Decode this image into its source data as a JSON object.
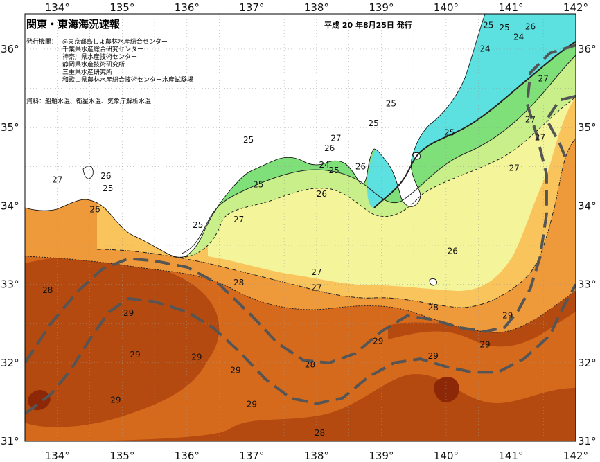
{
  "header": {
    "title": "関東・東海海況速報",
    "issue_date": "平成 20 年8月25日 発行"
  },
  "issuers": {
    "label": "発行機関：",
    "organizations": [
      "◎東京都島しょ農林水産総合センター",
      "千葉県水産総合研究センター",
      "神奈川県水産技術センター",
      "静岡県水産技術研究所",
      "三重県水産研究所",
      "和歌山県農林水産総合技術センター水産試験場"
    ]
  },
  "source": "資料：船舶水温、衛星水温、気象庁解析水温",
  "axes": {
    "lon_ticks": [
      "134°",
      "135°",
      "136°",
      "137°",
      "138°",
      "139°",
      "140°",
      "141°",
      "142°"
    ],
    "lat_ticks_left": [
      "36°",
      "35°",
      "34°",
      "33°",
      "32°",
      "31°"
    ],
    "lat_ticks_right": [
      "36°",
      "35°",
      "34°",
      "33°",
      "32°",
      "31°"
    ]
  },
  "colors": {
    "c24": "#5ce0e0",
    "c25": "#7fe07a",
    "c26": "#c8ef8a",
    "c26b": "#f4f49a",
    "c27": "#f9c45c",
    "c28": "#ee9a3a",
    "c29": "#d66a1c",
    "c30": "#b44a10",
    "c31": "#8c2808",
    "land": "#ffffff",
    "kuroshio": "#555555"
  },
  "contour_labels": [
    {
      "t": "25",
      "lon": 140.65,
      "lat": 36.3
    },
    {
      "t": "25",
      "lon": 140.9,
      "lat": 36.27
    },
    {
      "t": "26",
      "lon": 141.3,
      "lat": 36.28
    },
    {
      "t": "24",
      "lon": 141.12,
      "lat": 36.15
    },
    {
      "t": "24",
      "lon": 140.6,
      "lat": 36.0
    },
    {
      "t": "27",
      "lon": 141.5,
      "lat": 35.62
    },
    {
      "t": "27",
      "lon": 141.3,
      "lat": 35.1
    },
    {
      "t": "27",
      "lon": 141.45,
      "lat": 34.87
    },
    {
      "t": "27",
      "lon": 141.05,
      "lat": 34.48
    },
    {
      "t": "25",
      "lon": 139.15,
      "lat": 35.3
    },
    {
      "t": "25",
      "lon": 138.88,
      "lat": 35.05
    },
    {
      "t": "25",
      "lon": 140.05,
      "lat": 34.93
    },
    {
      "t": "25",
      "lon": 136.95,
      "lat": 34.84
    },
    {
      "t": "27",
      "lon": 138.3,
      "lat": 34.86
    },
    {
      "t": "26",
      "lon": 138.2,
      "lat": 34.73
    },
    {
      "t": "24",
      "lon": 138.12,
      "lat": 34.52
    },
    {
      "t": "25",
      "lon": 138.27,
      "lat": 34.45
    },
    {
      "t": "26",
      "lon": 138.68,
      "lat": 34.5
    },
    {
      "t": "25",
      "lon": 137.1,
      "lat": 34.27
    },
    {
      "t": "26",
      "lon": 138.08,
      "lat": 34.15
    },
    {
      "t": "27",
      "lon": 134.0,
      "lat": 34.33
    },
    {
      "t": "26",
      "lon": 134.75,
      "lat": 34.38
    },
    {
      "t": "25",
      "lon": 134.78,
      "lat": 34.22
    },
    {
      "t": "26",
      "lon": 134.58,
      "lat": 33.95
    },
    {
      "t": "27",
      "lon": 136.8,
      "lat": 33.82
    },
    {
      "t": "25",
      "lon": 136.17,
      "lat": 33.75
    },
    {
      "t": "26",
      "lon": 140.1,
      "lat": 33.42
    },
    {
      "t": "27",
      "lon": 138.0,
      "lat": 33.15
    },
    {
      "t": "27",
      "lon": 138.0,
      "lat": 32.95
    },
    {
      "t": "28",
      "lon": 136.8,
      "lat": 33.02
    },
    {
      "t": "28",
      "lon": 133.85,
      "lat": 32.92
    },
    {
      "t": "28",
      "lon": 139.8,
      "lat": 32.7
    },
    {
      "t": "29",
      "lon": 135.1,
      "lat": 32.63
    },
    {
      "t": "29",
      "lon": 140.95,
      "lat": 32.6
    },
    {
      "t": "29",
      "lon": 138.95,
      "lat": 32.27
    },
    {
      "t": "29",
      "lon": 140.6,
      "lat": 32.23
    },
    {
      "t": "29",
      "lon": 135.2,
      "lat": 32.1
    },
    {
      "t": "29",
      "lon": 136.15,
      "lat": 32.07
    },
    {
      "t": "29",
      "lon": 139.8,
      "lat": 32.08
    },
    {
      "t": "28",
      "lon": 137.9,
      "lat": 31.97
    },
    {
      "t": "29",
      "lon": 136.75,
      "lat": 31.9
    },
    {
      "t": "29",
      "lon": 134.9,
      "lat": 31.52
    },
    {
      "t": "29",
      "lon": 137.0,
      "lat": 31.47
    },
    {
      "t": "28",
      "lon": 138.05,
      "lat": 31.1
    }
  ],
  "kuroshio_axes": [
    [
      [
        133.5,
        32.0
      ],
      [
        133.9,
        32.5
      ],
      [
        134.3,
        32.9
      ],
      [
        134.7,
        33.2
      ],
      [
        135.1,
        33.33
      ],
      [
        135.5,
        33.3
      ],
      [
        136.0,
        33.22
      ],
      [
        136.5,
        33.0
      ],
      [
        137.0,
        32.6
      ],
      [
        137.4,
        32.25
      ],
      [
        137.8,
        32.03
      ],
      [
        138.2,
        32.0
      ],
      [
        138.6,
        32.12
      ],
      [
        139.0,
        32.4
      ],
      [
        139.4,
        32.6
      ],
      [
        139.8,
        32.55
      ],
      [
        140.2,
        32.45
      ],
      [
        140.6,
        32.4
      ],
      [
        140.9,
        32.45
      ],
      [
        141.1,
        32.65
      ],
      [
        141.3,
        32.95
      ],
      [
        141.45,
        33.35
      ],
      [
        141.55,
        33.9
      ],
      [
        141.55,
        34.4
      ],
      [
        141.4,
        34.9
      ],
      [
        141.25,
        35.3
      ],
      [
        141.3,
        35.7
      ],
      [
        141.6,
        35.95
      ],
      [
        142.0,
        36.05
      ]
    ],
    [
      [
        133.5,
        31.35
      ],
      [
        133.9,
        31.6
      ],
      [
        134.2,
        31.9
      ],
      [
        134.5,
        32.3
      ],
      [
        134.8,
        32.65
      ],
      [
        135.1,
        32.82
      ],
      [
        135.5,
        32.78
      ],
      [
        136.0,
        32.65
      ],
      [
        136.4,
        32.45
      ],
      [
        136.8,
        32.15
      ],
      [
        137.2,
        31.8
      ],
      [
        137.6,
        31.55
      ],
      [
        138.0,
        31.48
      ],
      [
        138.4,
        31.55
      ],
      [
        138.8,
        31.82
      ],
      [
        139.2,
        32.0
      ],
      [
        139.6,
        32.05
      ],
      [
        140.0,
        31.95
      ],
      [
        140.4,
        31.88
      ],
      [
        140.8,
        31.88
      ],
      [
        141.2,
        32.05
      ],
      [
        141.6,
        32.35
      ],
      [
        141.8,
        32.7
      ],
      [
        142.0,
        33.0
      ]
    ],
    [
      [
        142.0,
        35.4
      ],
      [
        141.75,
        35.35
      ],
      [
        141.55,
        35.1
      ],
      [
        141.75,
        34.8
      ],
      [
        141.85,
        34.6
      ]
    ]
  ]
}
